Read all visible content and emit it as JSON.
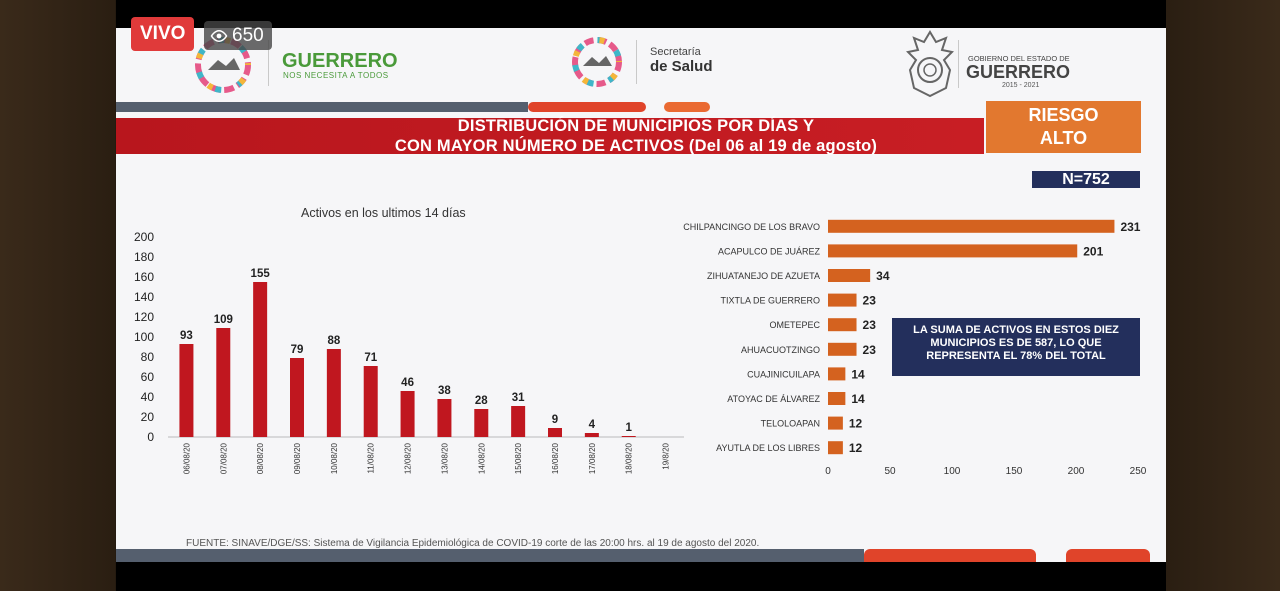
{
  "stream": {
    "live_label": "VIVO",
    "viewer_count": "650"
  },
  "header": {
    "left_logo_title": "GUERRERO",
    "left_logo_subtitle": "NOS NECESITA A TODOS",
    "center_logo_line1": "Secretaría",
    "center_logo_line2": "de Salud",
    "right_logo_line1": "GOBIERNO DEL ESTADO DE",
    "right_logo_line2": "GUERRERO",
    "right_logo_line3": "2015 - 2021"
  },
  "slide": {
    "title_line1": "DISTRIBUCIÓN DE MUNICIPIOS POR DÍAS Y",
    "title_line2": "CON MAYOR NÚMERO DE ACTIVOS (Del 06 al 19 de agosto)",
    "risk_line1": "RIESGO",
    "risk_line2": "ALTO",
    "n_label": "N=752",
    "note": "LA SUMA DE ACTIVOS EN ESTOS DIEZ MUNICIPIOS ES DE 587, LO QUE REPRESENTA EL 78% DEL TOTAL",
    "source": "FUENTE: SINAVE/DGE/SS: Sistema de Vigilancia Epidemiológica de COVID-19 corte de las 20:00 hrs. al 19 de agosto del 2020."
  },
  "colors": {
    "bar_red": "#c0171f",
    "bar_orange": "#d4621f",
    "accent_orange": "#e2782f",
    "navy": "#232f5c"
  },
  "chart_data": [
    {
      "type": "bar",
      "title": "Activos en los ultimos 14 días",
      "categories": [
        "06/08/20",
        "07/08/20",
        "08/08/20",
        "09/08/20",
        "10/08/20",
        "11/08/20",
        "12/08/20",
        "13/08/20",
        "14/08/20",
        "15/08/20",
        "16/08/20",
        "17/08/20",
        "18/08/20",
        "19/8/20"
      ],
      "values": [
        93,
        109,
        155,
        79,
        88,
        71,
        46,
        38,
        28,
        31,
        9,
        4,
        1,
        null
      ],
      "data_labels": [
        "93",
        "109",
        "155",
        "79",
        "88",
        "71",
        "46",
        "38",
        "28",
        "31",
        "9",
        "4",
        "1",
        ""
      ],
      "yticks": [
        "0",
        "20",
        "40",
        "60",
        "80",
        "100",
        "120",
        "140",
        "160",
        "180",
        "200"
      ],
      "ylim": [
        0,
        200
      ],
      "grid": false
    },
    {
      "type": "bar",
      "orientation": "horizontal",
      "categories": [
        "CHILPANCINGO DE LOS BRAVO",
        "ACAPULCO DE JUÁREZ",
        "ZIHUATANEJO DE AZUETA",
        "TIXTLA DE GUERRERO",
        "OMETEPEC",
        "AHUACUOTZINGO",
        "CUAJINICUILAPA",
        "ATOYAC DE ÁLVAREZ",
        "TELOLOAPAN",
        "AYUTLA DE LOS LIBRES"
      ],
      "values": [
        231,
        201,
        34,
        23,
        23,
        23,
        14,
        14,
        12,
        12
      ],
      "data_labels": [
        "231",
        "201",
        "34",
        "23",
        "23",
        "23",
        "14",
        "14",
        "12",
        "12"
      ],
      "xticks": [
        "0",
        "50",
        "100",
        "150",
        "200",
        "250"
      ],
      "xlim": [
        0,
        250
      ],
      "grid": false
    }
  ]
}
